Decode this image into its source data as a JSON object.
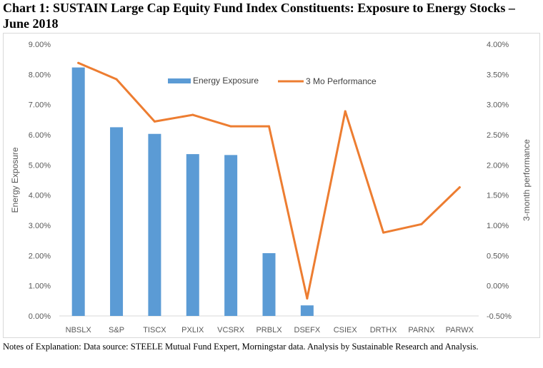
{
  "header": {
    "title": "Chart 1:  SUSTAIN Large Cap Equity Fund Index Constituents:   Exposure to Energy Stocks – June 2018"
  },
  "footer": {
    "notes": "Notes of Explanation:  Data source:  STEELE Mutual Fund Expert, Morningstar data. Analysis by Sustainable Research and Analysis."
  },
  "chart_data": {
    "type": "bar",
    "title": "Chart 1:  SUSTAIN Large Cap Equity Fund Index Constituents:   Exposure to Energy Stocks – June 2018",
    "categories": [
      "NBSLX",
      "S&P",
      "TISCX",
      "PXLIX",
      "VCSRX",
      "PRBLX",
      "DSEFX",
      "CSIEX",
      "DRTHX",
      "PARNX",
      "PARWX"
    ],
    "series": [
      {
        "name": "Energy Exposure",
        "type": "bar",
        "axis": "left",
        "color": "#5b9bd5",
        "values": [
          8.23,
          6.25,
          6.03,
          5.36,
          5.33,
          2.08,
          0.35,
          null,
          null,
          null,
          null
        ]
      },
      {
        "name": "3 Mo Performance",
        "type": "line",
        "axis": "right",
        "color": "#ed7d31",
        "values": [
          3.69,
          3.42,
          2.72,
          2.83,
          2.64,
          2.64,
          -0.21,
          2.89,
          0.88,
          1.02,
          1.63
        ]
      }
    ],
    "ylabel": "Energy Exposure",
    "y2label": "3-month performance",
    "ylim": [
      0,
      9
    ],
    "y2lim": [
      -0.5,
      4
    ],
    "yticks": [
      "0.00%",
      "1.00%",
      "2.00%",
      "3.00%",
      "4.00%",
      "5.00%",
      "6.00%",
      "7.00%",
      "8.00%",
      "9.00%"
    ],
    "y2ticks": [
      "-0.50%",
      "0.00%",
      "0.50%",
      "1.00%",
      "1.50%",
      "2.00%",
      "2.50%",
      "3.00%",
      "3.50%",
      "4.00%"
    ],
    "grid": false,
    "legend_position": "top-center"
  }
}
